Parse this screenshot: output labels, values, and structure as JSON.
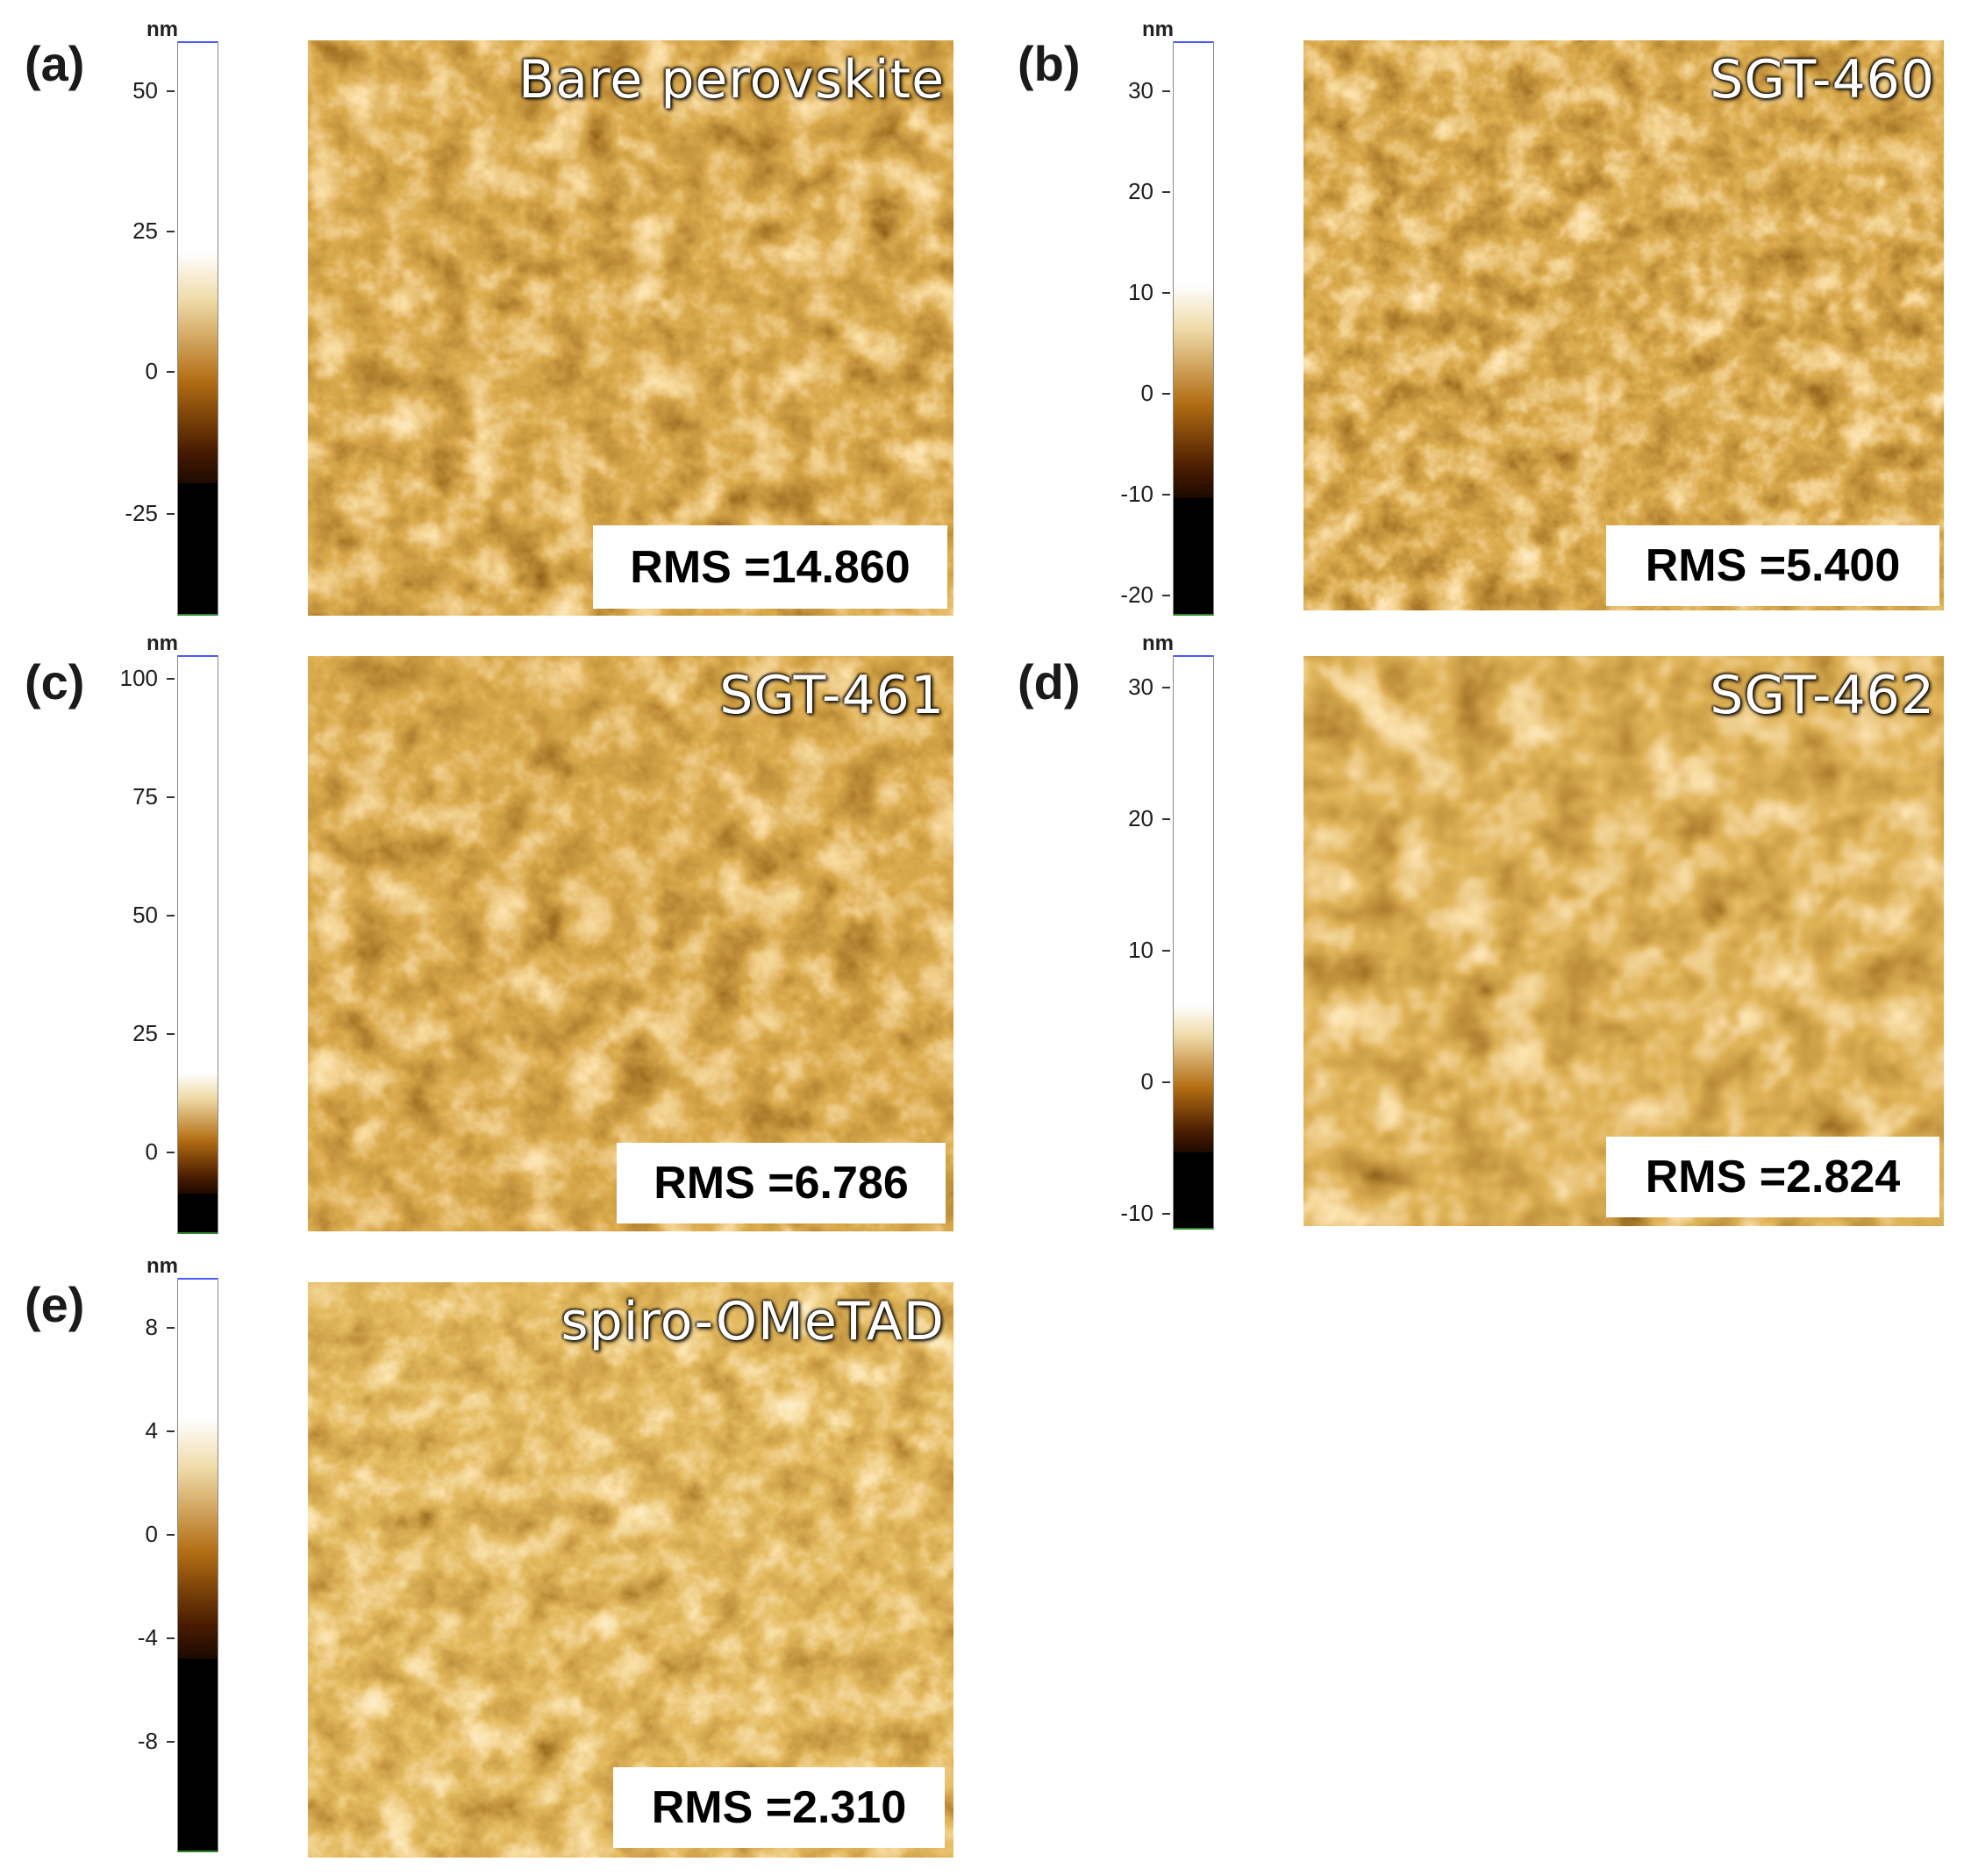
{
  "panels": [
    {
      "letter": "(a)",
      "sample": "Bare perovskite",
      "rms": "RMS =14.860",
      "unit": "nm",
      "ticks": [
        "50",
        "25",
        "0",
        "-25"
      ]
    },
    {
      "letter": "(b)",
      "sample": "SGT-460",
      "rms": "RMS =5.400",
      "unit": "nm",
      "ticks": [
        "30",
        "20",
        "10",
        "0",
        "-10",
        "-20"
      ]
    },
    {
      "letter": "(c)",
      "sample": "SGT-461",
      "rms": "RMS =6.786",
      "unit": "nm",
      "ticks": [
        "100",
        "75",
        "50",
        "25",
        "0"
      ]
    },
    {
      "letter": "(d)",
      "sample": "SGT-462",
      "rms": "RMS =2.824",
      "unit": "nm",
      "ticks": [
        "30",
        "20",
        "10",
        "0",
        "-10"
      ]
    },
    {
      "letter": "(e)",
      "sample": "spiro-OMeTAD",
      "rms": "RMS =2.310",
      "unit": "nm",
      "ticks": [
        "8",
        "4",
        "0",
        "-4",
        "-8"
      ]
    }
  ],
  "colors": {
    "afm_dark": "#2b1200",
    "afm_mid": "#b56a12",
    "afm_bright": "#fff2c8"
  }
}
